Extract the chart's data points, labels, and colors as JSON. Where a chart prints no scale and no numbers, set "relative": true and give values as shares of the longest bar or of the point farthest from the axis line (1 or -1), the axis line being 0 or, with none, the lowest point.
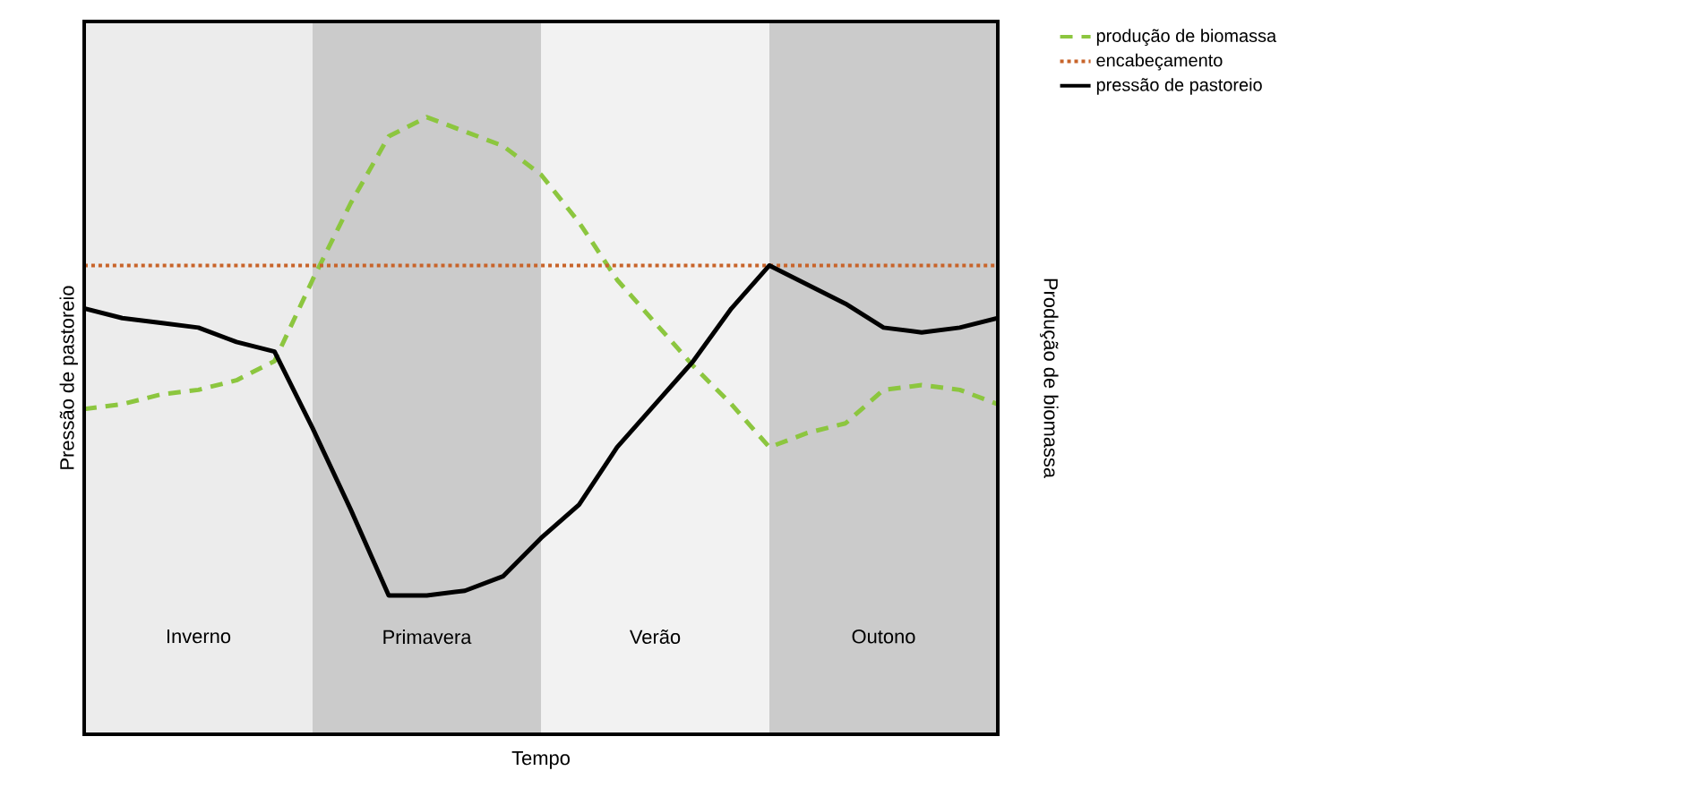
{
  "chart_data": {
    "type": "line",
    "relative": true,
    "annotations": [
      "Tempo"
    ],
    "ylabel": "Pressão de pastoreio",
    "y2label": "Produção de biomassa",
    "legend": "right",
    "categories": [
      null,
      null,
      null,
      "Inverno",
      null,
      null,
      null,
      null,
      null,
      "Primavera",
      null,
      null,
      null,
      null,
      null,
      "Verão",
      null,
      null,
      null,
      null,
      null,
      "Outono",
      null,
      null,
      null
    ],
    "series": [
      {
        "name": "produção de biomassa",
        "color": "#8cc63f",
        "line_style": "dashed",
        "values": [
          0.39,
          0.4,
          0.42,
          0.43,
          0.45,
          0.49,
          0.66,
          0.82,
          0.96,
          1,
          0.97,
          0.94,
          0.88,
          0.78,
          0.66,
          0.57,
          0.48,
          0.4,
          0.31,
          0.34,
          0.36,
          0.43,
          0.44,
          0.43,
          0.4
        ]
      },
      {
        "name": "pressão de pastoreio",
        "color": "#000000",
        "line_style": "solid",
        "values": [
          0.6,
          0.58,
          0.57,
          0.56,
          0.53,
          0.51,
          0.35,
          0.18,
          0,
          0,
          0.01,
          0.04,
          0.12,
          0.19,
          0.31,
          0.4,
          0.49,
          0.6,
          0.69,
          0.65,
          0.61,
          0.56,
          0.55,
          0.56,
          0.58
        ]
      }
    ],
    "ref_lines": [
      {
        "axis": "y",
        "value": 0.69,
        "label": "encabeçamento",
        "color": "#c8642a",
        "line_style": "dotted"
      }
    ]
  }
}
